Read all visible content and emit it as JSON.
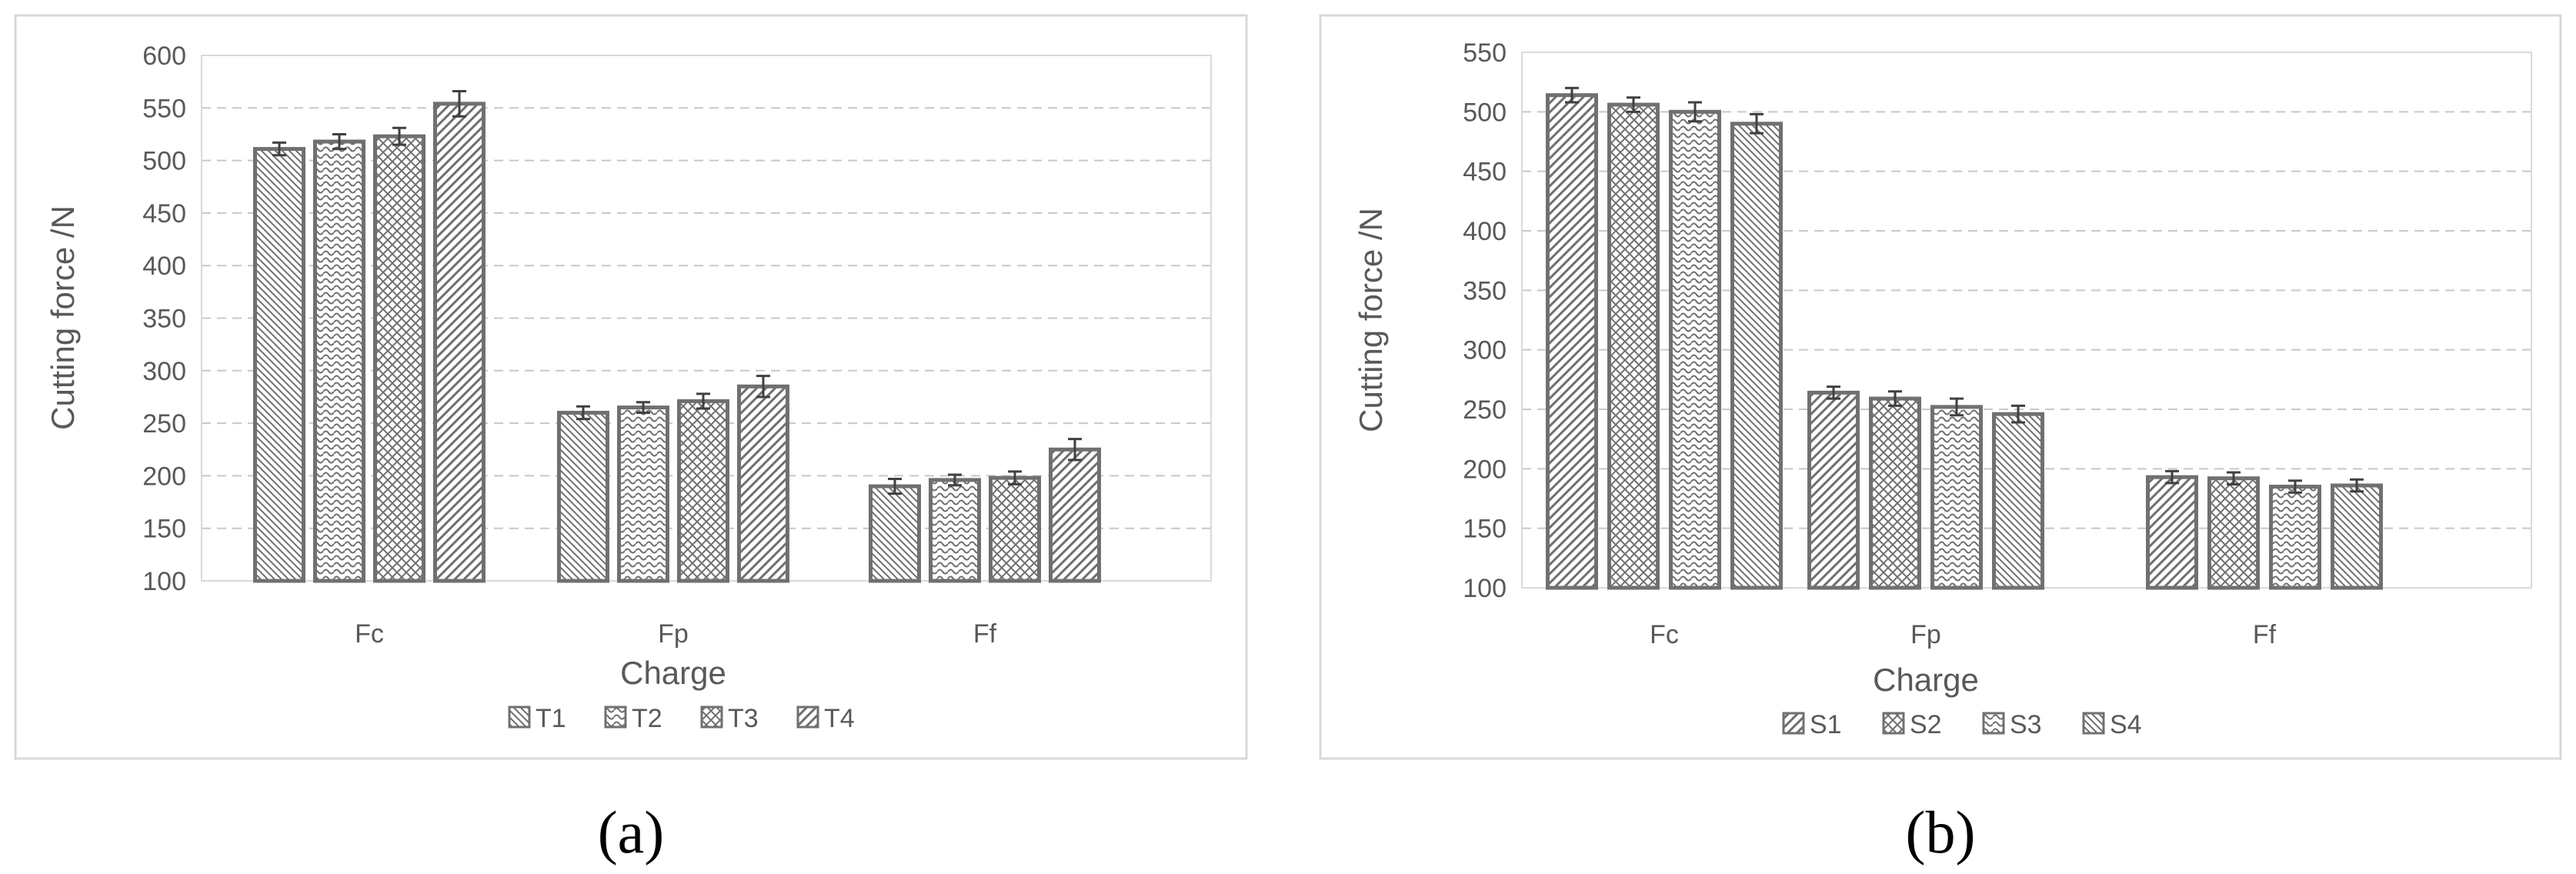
{
  "chart_data": [
    {
      "type": "bar",
      "panel_label": "(a)",
      "categories": [
        "Fc",
        "Fp",
        "Ff"
      ],
      "xlabel": "Charge",
      "ylabel": "Cutting force /N",
      "ylim": [
        100,
        600
      ],
      "yticks": [
        100,
        150,
        200,
        250,
        300,
        350,
        400,
        450,
        500,
        550,
        600
      ],
      "grid": true,
      "legend_position": "bottom",
      "series": [
        {
          "name": "T1",
          "pattern": "diag-left",
          "values": [
            511,
            260,
            190
          ],
          "errors": [
            6,
            6,
            7
          ]
        },
        {
          "name": "T2",
          "pattern": "wave",
          "values": [
            518,
            265,
            196
          ],
          "errors": [
            7,
            5,
            5
          ]
        },
        {
          "name": "T3",
          "pattern": "crosshatch",
          "values": [
            523,
            271,
            198
          ],
          "errors": [
            8,
            7,
            6
          ]
        },
        {
          "name": "T4",
          "pattern": "diag-right",
          "values": [
            554,
            285,
            225
          ],
          "errors": [
            12,
            10,
            10
          ]
        }
      ]
    },
    {
      "type": "bar",
      "panel_label": "(b)",
      "categories": [
        "Fc",
        "Fp",
        "Ff"
      ],
      "xlabel": "Charge",
      "ylabel": "Cutting force /N",
      "ylim": [
        100,
        550
      ],
      "yticks": [
        100,
        150,
        200,
        250,
        300,
        350,
        400,
        450,
        500,
        550
      ],
      "grid": true,
      "legend_position": "bottom",
      "series": [
        {
          "name": "S1",
          "pattern": "diag-right",
          "values": [
            514,
            264,
            193
          ],
          "errors": [
            6,
            5,
            5
          ]
        },
        {
          "name": "S2",
          "pattern": "crosshatch",
          "values": [
            506,
            259,
            192
          ],
          "errors": [
            6,
            6,
            5
          ]
        },
        {
          "name": "S3",
          "pattern": "wave",
          "values": [
            500,
            252,
            185
          ],
          "errors": [
            8,
            7,
            5
          ]
        },
        {
          "name": "S4",
          "pattern": "diag-left",
          "values": [
            490,
            246,
            186
          ],
          "errors": [
            8,
            7,
            5
          ]
        }
      ]
    }
  ]
}
